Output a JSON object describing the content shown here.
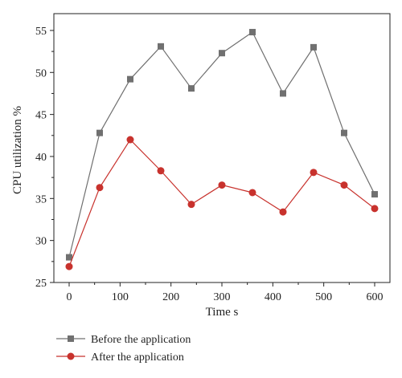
{
  "chart_data": {
    "type": "line",
    "title": "",
    "xlabel": "Time s",
    "ylabel": "CPU utilization %",
    "xlim": [
      -30,
      630
    ],
    "ylim": [
      25,
      57
    ],
    "xticks": [
      0,
      100,
      200,
      300,
      400,
      500,
      600
    ],
    "yticks": [
      25,
      30,
      35,
      40,
      45,
      50,
      55
    ],
    "grid": false,
    "legend_position": "bottom",
    "series": [
      {
        "name": "Before the application",
        "color": "#707070",
        "marker": "square",
        "x": [
          0,
          60,
          120,
          180,
          240,
          300,
          360,
          420,
          480,
          540,
          600
        ],
        "y": [
          28.0,
          42.8,
          49.2,
          53.1,
          48.1,
          52.3,
          54.8,
          47.5,
          53.0,
          42.8,
          35.5
        ]
      },
      {
        "name": "After the application",
        "color": "#c8322d",
        "marker": "circle",
        "x": [
          0,
          60,
          120,
          180,
          240,
          300,
          360,
          420,
          480,
          540,
          600
        ],
        "y": [
          26.9,
          36.3,
          42.0,
          38.3,
          34.3,
          36.6,
          35.7,
          33.4,
          38.1,
          36.6,
          33.8
        ]
      }
    ]
  }
}
